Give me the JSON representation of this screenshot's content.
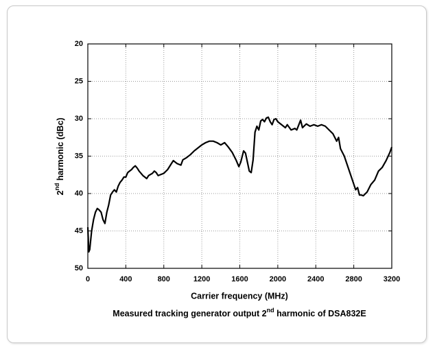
{
  "chart_data": {
    "type": "line",
    "x_label": "Carrier frequency (MHz)",
    "y_label": {
      "before": "2",
      "sup": "nd",
      "after": " harmonic (dBc)"
    },
    "caption": {
      "before": "Measured tracking generator output 2",
      "sup": "nd",
      "after": " harmonic of DSA832E"
    },
    "xlim": [
      0,
      3200
    ],
    "xticks": [
      0,
      400,
      800,
      1200,
      1600,
      2000,
      2400,
      2800,
      3200
    ],
    "ylim": [
      50,
      20
    ],
    "yticks": [
      20,
      25,
      30,
      35,
      40,
      45,
      50
    ],
    "grid": true,
    "color": "#000000",
    "x": [
      0,
      10,
      20,
      40,
      60,
      80,
      100,
      120,
      140,
      160,
      180,
      200,
      220,
      240,
      260,
      280,
      300,
      320,
      340,
      360,
      380,
      400,
      420,
      440,
      460,
      480,
      500,
      520,
      540,
      560,
      580,
      600,
      620,
      640,
      680,
      700,
      720,
      740,
      760,
      800,
      840,
      880,
      900,
      940,
      980,
      1000,
      1040,
      1080,
      1120,
      1160,
      1200,
      1240,
      1280,
      1320,
      1360,
      1400,
      1440,
      1480,
      1520,
      1560,
      1590,
      1610,
      1640,
      1660,
      1680,
      1700,
      1720,
      1740,
      1760,
      1780,
      1800,
      1820,
      1840,
      1860,
      1880,
      1900,
      1920,
      1940,
      1960,
      1980,
      2000,
      2040,
      2080,
      2100,
      2140,
      2180,
      2200,
      2240,
      2260,
      2300,
      2340,
      2380,
      2420,
      2460,
      2500,
      2540,
      2580,
      2620,
      2640,
      2660,
      2700,
      2740,
      2780,
      2820,
      2840,
      2860,
      2880,
      2900,
      2940,
      2980,
      3020,
      3060,
      3100,
      3140,
      3180,
      3200
    ],
    "values": [
      44.5,
      47.8,
      47.5,
      45,
      43.5,
      42.5,
      42,
      42.2,
      42.5,
      43.5,
      44,
      42.5,
      41.5,
      40.2,
      39.8,
      39.5,
      39.8,
      39,
      38.5,
      38.2,
      37.8,
      37.8,
      37.2,
      37,
      36.8,
      36.5,
      36.3,
      36.6,
      37,
      37.3,
      37.6,
      37.8,
      38,
      37.6,
      37.3,
      37,
      37.2,
      37.6,
      37.5,
      37.3,
      36.8,
      36,
      35.6,
      36,
      36.2,
      35.5,
      35.2,
      34.8,
      34.3,
      33.9,
      33.5,
      33.2,
      33,
      33,
      33.2,
      33.5,
      33.2,
      33.8,
      34.5,
      35.5,
      36.4,
      35.8,
      34.3,
      34.6,
      35.8,
      37,
      37.2,
      35.5,
      31.8,
      31,
      31.5,
      30.3,
      30.1,
      30.4,
      29.9,
      29.8,
      30.4,
      30.8,
      30.1,
      30,
      30.4,
      30.8,
      31.2,
      30.8,
      31.5,
      31.3,
      31.5,
      30.2,
      31.2,
      30.7,
      31,
      30.8,
      31,
      30.8,
      31,
      31.5,
      32,
      33,
      32.5,
      34,
      35,
      36.5,
      38,
      39.5,
      39.2,
      40.2,
      40.2,
      40.3,
      39.8,
      38.8,
      38.2,
      37,
      36.5,
      35.6,
      34.5,
      33.8
    ]
  }
}
